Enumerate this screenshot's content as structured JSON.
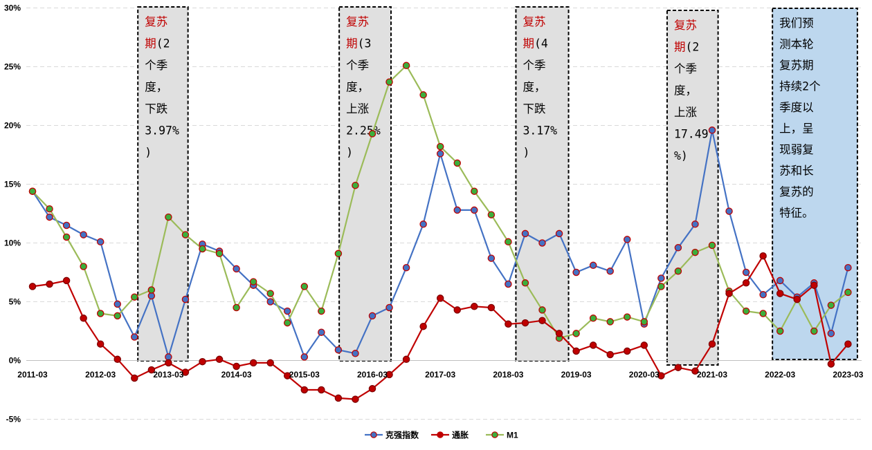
{
  "chart_data": {
    "type": "line",
    "x": [
      "2011-03",
      "2011-06",
      "2011-09",
      "2011-12",
      "2012-03",
      "2012-06",
      "2012-09",
      "2012-12",
      "2013-03",
      "2013-06",
      "2013-09",
      "2013-12",
      "2014-03",
      "2014-06",
      "2014-09",
      "2014-12",
      "2015-03",
      "2015-06",
      "2015-09",
      "2015-12",
      "2016-03",
      "2016-06",
      "2016-09",
      "2016-12",
      "2017-03",
      "2017-06",
      "2017-09",
      "2017-12",
      "2018-03",
      "2018-06",
      "2018-09",
      "2018-12",
      "2019-03",
      "2019-06",
      "2019-09",
      "2019-12",
      "2020-03",
      "2020-06",
      "2020-09",
      "2020-12",
      "2021-03",
      "2021-06",
      "2021-09",
      "2021-12",
      "2022-03",
      "2022-06",
      "2022-09",
      "2022-12",
      "2023-03"
    ],
    "x_tick_labels": [
      "2011-03",
      "2012-03",
      "2013-03",
      "2014-03",
      "2015-03",
      "2016-03",
      "2017-03",
      "2018-03",
      "2019-03",
      "2020-03",
      "2021-03",
      "2022-03",
      "2023-03"
    ],
    "y_tick_labels": [
      "30%",
      "25%",
      "20%",
      "15%",
      "10%",
      "5%",
      "0%",
      "-5%"
    ],
    "ylim": [
      -5,
      30
    ],
    "grid": "horizontal dashed",
    "legend_position": "bottom",
    "series": [
      {
        "name": "克强指数",
        "color": "#4472C4",
        "values": [
          14.4,
          12.2,
          11.5,
          10.7,
          10.1,
          4.8,
          2.0,
          5.5,
          0.3,
          5.2,
          9.9,
          9.3,
          7.8,
          6.4,
          5.0,
          4.2,
          0.3,
          2.4,
          0.9,
          0.6,
          3.8,
          4.5,
          7.9,
          11.6,
          17.6,
          12.8,
          12.8,
          8.7,
          6.5,
          10.8,
          10.0,
          10.8,
          7.5,
          8.1,
          7.6,
          10.3,
          3.1,
          7.0,
          9.6,
          11.6,
          19.6,
          12.7,
          7.5,
          5.6,
          6.8,
          5.4,
          6.6,
          2.3,
          7.9
        ]
      },
      {
        "name": "通胀",
        "color": "#C00000",
        "values": [
          6.3,
          6.5,
          6.8,
          3.6,
          1.4,
          0.1,
          -1.5,
          -0.8,
          -0.2,
          -1.0,
          -0.1,
          0.1,
          -0.5,
          -0.2,
          -0.2,
          -1.3,
          -2.5,
          -2.5,
          -3.2,
          -3.3,
          -2.4,
          -1.2,
          0.1,
          2.9,
          5.3,
          4.3,
          4.6,
          4.5,
          3.1,
          3.2,
          3.4,
          2.3,
          0.8,
          1.3,
          0.5,
          0.8,
          1.3,
          -1.3,
          -0.6,
          -0.9,
          1.4,
          5.7,
          6.6,
          8.9,
          5.7,
          5.2,
          6.4,
          -0.3,
          1.4
        ]
      },
      {
        "name": "M1",
        "color": "#9BBB59",
        "values": [
          14.4,
          12.9,
          10.5,
          8.0,
          4.0,
          3.8,
          5.4,
          6.0,
          12.2,
          10.7,
          9.5,
          9.1,
          4.5,
          6.7,
          5.7,
          3.2,
          6.3,
          4.2,
          9.1,
          14.9,
          19.3,
          23.7,
          25.1,
          22.6,
          18.2,
          16.8,
          14.4,
          12.4,
          10.1,
          6.6,
          4.3,
          1.9,
          2.3,
          3.6,
          3.3,
          3.7,
          3.3,
          6.3,
          7.6,
          9.2,
          9.8,
          5.9,
          4.2,
          4.0,
          2.5,
          5.2,
          2.5,
          4.7,
          5.8
        ]
      }
    ],
    "annotations": [
      {
        "lines": [
          [
            "复苏",
            "red"
          ],
          [
            "期",
            "red",
            "(2"
          ],
          [
            "个季"
          ],
          [
            "度，"
          ],
          [
            "下跌"
          ],
          [
            "3.97%"
          ],
          [
            ")"
          ]
        ],
        "style": "gray"
      },
      {
        "lines": [
          [
            "复苏",
            "red"
          ],
          [
            "期",
            "red",
            "(3"
          ],
          [
            "个季"
          ],
          [
            "度，"
          ],
          [
            "上涨"
          ],
          [
            "2.25%"
          ],
          [
            ")"
          ]
        ],
        "style": "gray"
      },
      {
        "lines": [
          [
            "复苏",
            "red"
          ],
          [
            "期",
            "red",
            "(4"
          ],
          [
            "个季"
          ],
          [
            "度，"
          ],
          [
            "下跌"
          ],
          [
            "3.17%"
          ],
          [
            ")"
          ]
        ],
        "style": "gray"
      },
      {
        "lines": [
          [
            "复苏",
            "red"
          ],
          [
            "期",
            "red",
            "(2"
          ],
          [
            "个季"
          ],
          [
            "度，"
          ],
          [
            "上涨"
          ],
          [
            "17.49"
          ],
          [
            "%)"
          ]
        ],
        "style": "gray"
      },
      {
        "lines": [
          [
            "我们预"
          ],
          [
            "测本轮"
          ],
          [
            "复苏期"
          ],
          [
            "持续2个"
          ],
          [
            "季度以"
          ],
          [
            "上，呈"
          ],
          [
            "现弱复"
          ],
          [
            "苏和长"
          ],
          [
            "复苏的"
          ],
          [
            "特征。"
          ]
        ],
        "style": "blue"
      }
    ]
  }
}
